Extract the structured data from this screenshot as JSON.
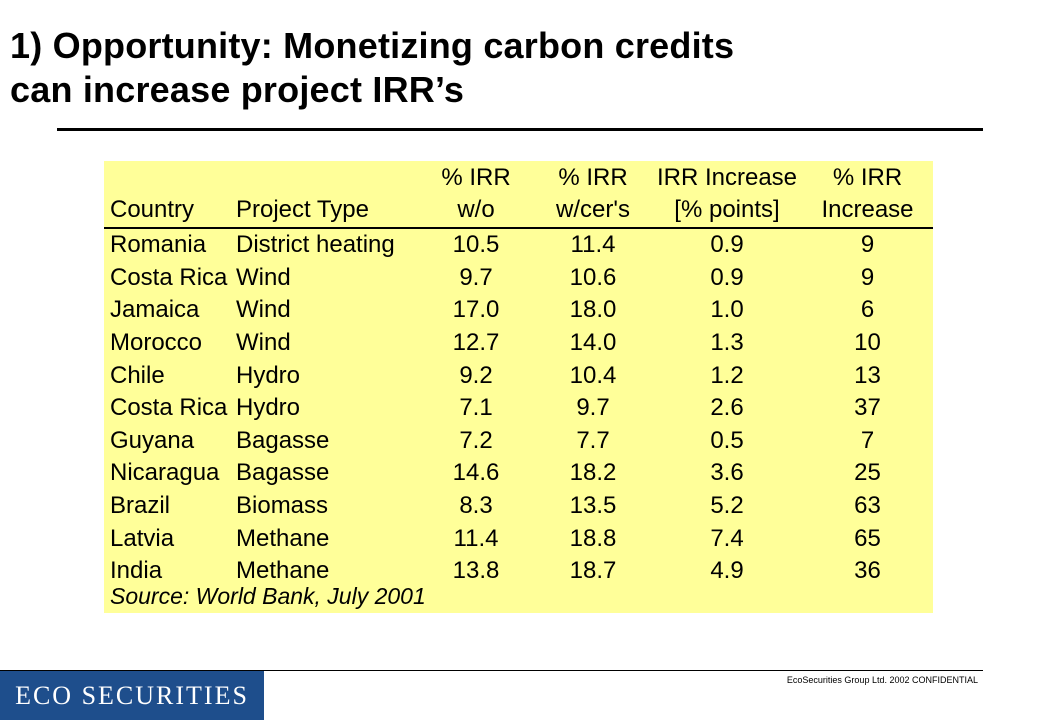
{
  "slide": {
    "title_line1": "1) Opportunity: Monetizing carbon credits",
    "title_line2": "can increase project IRR’s"
  },
  "table": {
    "headers": {
      "row1": [
        "",
        "",
        "% IRR",
        "% IRR",
        "IRR Increase",
        "% IRR"
      ],
      "row2": [
        "Country",
        "Project Type",
        "w/o",
        "w/cer's",
        "[%  points]",
        "Increase"
      ]
    },
    "rows": [
      [
        "Romania",
        "District heating",
        "10.5",
        "11.4",
        "0.9",
        "9"
      ],
      [
        "Costa Rica",
        "Wind",
        "9.7",
        "10.6",
        "0.9",
        "9"
      ],
      [
        "Jamaica",
        "Wind",
        "17.0",
        "18.0",
        "1.0",
        "6"
      ],
      [
        "Morocco",
        "Wind",
        "12.7",
        "14.0",
        "1.3",
        "10"
      ],
      [
        "Chile",
        "Hydro",
        "9.2",
        "10.4",
        "1.2",
        "13"
      ],
      [
        "Costa Rica",
        "Hydro",
        "7.1",
        "9.7",
        "2.6",
        "37"
      ],
      [
        "Guyana",
        "Bagasse",
        "7.2",
        "7.7",
        "0.5",
        "7"
      ],
      [
        "Nicaragua",
        "Bagasse",
        "14.6",
        "18.2",
        "3.6",
        "25"
      ],
      [
        "Brazil",
        "Biomass",
        "8.3",
        "13.5",
        "5.2",
        "63"
      ],
      [
        "Latvia",
        "Methane",
        "11.4",
        "18.8",
        "7.4",
        "65"
      ],
      [
        "India",
        "Methane",
        "13.8",
        "18.7",
        "4.9",
        "36"
      ]
    ],
    "source": "Source: World Bank, July 2001",
    "background": "#ffff99"
  },
  "footer": {
    "confidential": "EcoSecurities Group Ltd. 2002 CONFIDENTIAL",
    "logo_text": "ECO SECURITIES",
    "logo_color": "#1e4e8c"
  }
}
